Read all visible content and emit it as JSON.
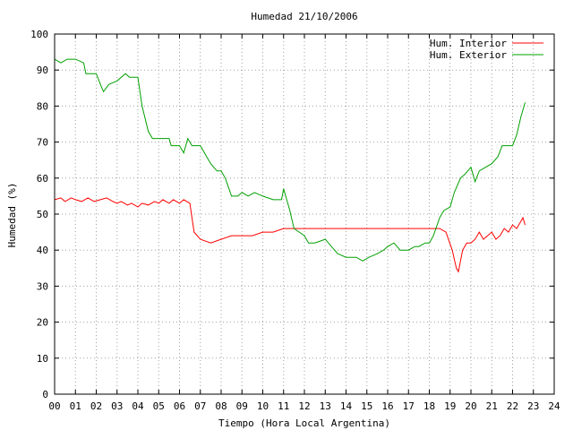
{
  "chart_data": {
    "type": "line",
    "title": "Humedad 21/10/2006",
    "xlabel": "Tiempo (Hora Local Argentina)",
    "ylabel": "Humedad (%)",
    "xlim": [
      0,
      24
    ],
    "ylim": [
      0,
      100
    ],
    "x_tick_labels": [
      "00",
      "01",
      "02",
      "03",
      "04",
      "05",
      "06",
      "07",
      "08",
      "09",
      "10",
      "11",
      "12",
      "13",
      "14",
      "15",
      "16",
      "17",
      "18",
      "19",
      "20",
      "21",
      "22",
      "23",
      "24"
    ],
    "y_ticks": [
      0,
      10,
      20,
      30,
      40,
      50,
      60,
      70,
      80,
      90,
      100
    ],
    "grid": true,
    "legend_position": "top-right",
    "series": [
      {
        "name": "Hum. Interior",
        "color": "#ff0000",
        "points": [
          [
            0,
            54
          ],
          [
            0.3,
            54.5
          ],
          [
            0.5,
            53.5
          ],
          [
            0.8,
            54.5
          ],
          [
            1,
            54
          ],
          [
            1.3,
            53.5
          ],
          [
            1.6,
            54.5
          ],
          [
            1.9,
            53.5
          ],
          [
            2.2,
            54
          ],
          [
            2.5,
            54.5
          ],
          [
            2.8,
            53.5
          ],
          [
            3,
            53
          ],
          [
            3.2,
            53.5
          ],
          [
            3.5,
            52.5
          ],
          [
            3.7,
            53
          ],
          [
            4,
            52
          ],
          [
            4.2,
            53
          ],
          [
            4.5,
            52.5
          ],
          [
            4.8,
            53.5
          ],
          [
            5,
            53
          ],
          [
            5.2,
            54
          ],
          [
            5.5,
            53
          ],
          [
            5.7,
            54
          ],
          [
            6,
            53
          ],
          [
            6.2,
            54
          ],
          [
            6.5,
            53
          ],
          [
            6.6,
            49
          ],
          [
            6.7,
            45
          ],
          [
            7,
            43
          ],
          [
            7.5,
            42
          ],
          [
            8,
            43
          ],
          [
            8.5,
            44
          ],
          [
            9,
            44
          ],
          [
            9.5,
            44
          ],
          [
            10,
            45
          ],
          [
            10.5,
            45
          ],
          [
            11,
            46
          ],
          [
            11.5,
            46
          ],
          [
            12,
            46
          ],
          [
            12.5,
            46
          ],
          [
            13,
            46
          ],
          [
            13.5,
            46
          ],
          [
            14,
            46
          ],
          [
            15,
            46
          ],
          [
            16,
            46
          ],
          [
            17,
            46
          ],
          [
            18,
            46
          ],
          [
            18.5,
            46
          ],
          [
            18.8,
            45
          ],
          [
            19.1,
            40
          ],
          [
            19.3,
            35
          ],
          [
            19.4,
            34
          ],
          [
            19.6,
            40
          ],
          [
            19.8,
            42
          ],
          [
            20,
            42
          ],
          [
            20.2,
            43
          ],
          [
            20.4,
            45
          ],
          [
            20.6,
            43
          ],
          [
            20.8,
            44
          ],
          [
            21,
            45
          ],
          [
            21.2,
            43
          ],
          [
            21.4,
            44
          ],
          [
            21.6,
            46
          ],
          [
            21.8,
            45
          ],
          [
            22,
            47
          ],
          [
            22.2,
            46
          ],
          [
            22.4,
            48
          ],
          [
            22.5,
            49
          ],
          [
            22.6,
            47
          ]
        ]
      },
      {
        "name": "Hum. Exterior",
        "color": "#00a000",
        "points": [
          [
            0,
            93
          ],
          [
            0.3,
            92
          ],
          [
            0.6,
            93
          ],
          [
            1,
            93
          ],
          [
            1.4,
            92
          ],
          [
            1.5,
            89
          ],
          [
            2,
            89
          ],
          [
            2.2,
            86
          ],
          [
            2.35,
            84
          ],
          [
            2.6,
            86
          ],
          [
            3,
            87
          ],
          [
            3.4,
            89
          ],
          [
            3.6,
            88
          ],
          [
            4,
            88
          ],
          [
            4.2,
            80
          ],
          [
            4.5,
            73
          ],
          [
            4.7,
            71
          ],
          [
            5,
            71
          ],
          [
            5.5,
            71
          ],
          [
            5.6,
            69
          ],
          [
            6,
            69
          ],
          [
            6.2,
            67
          ],
          [
            6.4,
            71
          ],
          [
            6.6,
            69
          ],
          [
            7,
            69
          ],
          [
            7.3,
            66
          ],
          [
            7.5,
            64
          ],
          [
            7.8,
            62
          ],
          [
            8,
            62
          ],
          [
            8.2,
            60
          ],
          [
            8.5,
            55
          ],
          [
            8.8,
            55
          ],
          [
            9,
            56
          ],
          [
            9.3,
            55
          ],
          [
            9.6,
            56
          ],
          [
            10,
            55
          ],
          [
            10.5,
            54
          ],
          [
            10.9,
            54
          ],
          [
            11,
            57
          ],
          [
            11.2,
            53
          ],
          [
            11.3,
            51
          ],
          [
            11.5,
            46
          ],
          [
            12,
            44
          ],
          [
            12.2,
            42
          ],
          [
            12.5,
            42
          ],
          [
            13,
            43
          ],
          [
            13.3,
            41
          ],
          [
            13.6,
            39
          ],
          [
            14,
            38
          ],
          [
            14.5,
            38
          ],
          [
            14.8,
            37
          ],
          [
            15.1,
            38
          ],
          [
            15.5,
            39
          ],
          [
            15.8,
            40
          ],
          [
            16,
            41
          ],
          [
            16.3,
            42
          ],
          [
            16.6,
            40
          ],
          [
            17,
            40
          ],
          [
            17.3,
            41
          ],
          [
            17.5,
            41
          ],
          [
            17.8,
            42
          ],
          [
            18,
            42
          ],
          [
            18.2,
            44
          ],
          [
            18.5,
            49
          ],
          [
            18.7,
            51
          ],
          [
            19,
            52
          ],
          [
            19.2,
            56
          ],
          [
            19.5,
            60
          ],
          [
            19.7,
            61
          ],
          [
            20,
            63
          ],
          [
            20.2,
            59
          ],
          [
            20.4,
            62
          ],
          [
            20.7,
            63
          ],
          [
            21,
            64
          ],
          [
            21.3,
            66
          ],
          [
            21.5,
            69
          ],
          [
            22,
            69
          ],
          [
            22.2,
            72
          ],
          [
            22.4,
            77
          ],
          [
            22.6,
            81
          ]
        ]
      }
    ]
  }
}
